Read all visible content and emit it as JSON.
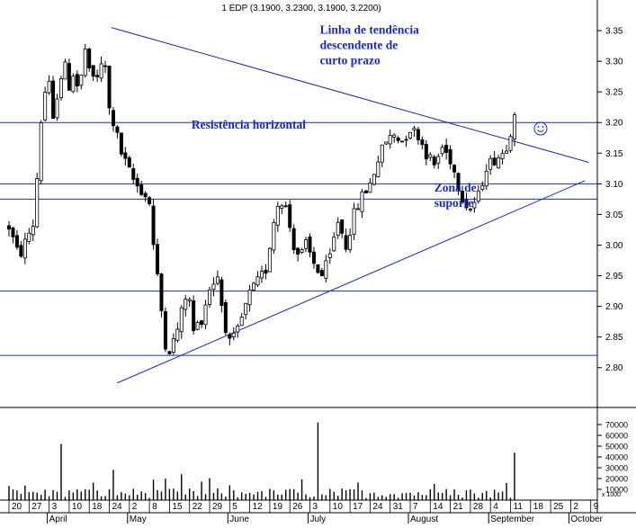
{
  "chart_data": {
    "type": "candlestick",
    "title": "1 EDP (3.1900, 3.2300, 3.1900, 3.2200)",
    "price_axis": {
      "ylim": [
        2.735,
        3.4
      ],
      "ticks": [
        "3.35",
        "3.30",
        "3.25",
        "3.20",
        "3.15",
        "3.10",
        "3.05",
        "3.00",
        "2.95",
        "2.90",
        "2.85",
        "2.80"
      ]
    },
    "volume_axis": {
      "ymax": 80000,
      "ticks": [
        "70000",
        "60000",
        "50000",
        "40000",
        "30000",
        "20000",
        "10000"
      ],
      "unit_label": "x 1000"
    },
    "x_day_labels": [
      "20",
      "27",
      "3",
      "10",
      "18",
      "24",
      "2",
      "8",
      "15",
      "22",
      "29",
      "5",
      "12",
      "19",
      "26",
      "3",
      "10",
      "17",
      "24",
      "31",
      "7",
      "14",
      "21",
      "28",
      "4",
      "11",
      "18",
      "25",
      "2",
      "9"
    ],
    "x_month_labels": [
      {
        "at": 2,
        "label": "April"
      },
      {
        "at": 6,
        "label": "May"
      },
      {
        "at": 11,
        "label": "June"
      },
      {
        "at": 15,
        "label": "July"
      },
      {
        "at": 20,
        "label": "August"
      },
      {
        "at": 24,
        "label": "September"
      },
      {
        "at": 28,
        "label": "October"
      }
    ],
    "horizontal_lines": [
      3.2,
      3.1,
      3.075,
      2.925,
      2.82
    ],
    "trendlines": [
      {
        "from": [
          5.1,
          3.355
        ],
        "to": [
          28.9,
          3.135
        ]
      },
      {
        "from": [
          5.4,
          2.775
        ],
        "to": [
          28.7,
          3.105
        ]
      }
    ],
    "annotations": [
      {
        "lines": [
          "Linha de tendência",
          "descendente de",
          "curto prazo"
        ],
        "x": 15.5,
        "y": 3.345
      },
      {
        "lines": [
          "Resistência horizontal"
        ],
        "x": 9.1,
        "y": 3.19
      },
      {
        "lines": [
          "Zona de",
          "suporte"
        ],
        "x": 21.2,
        "y": 3.087
      }
    ],
    "smiley_at": [
      26.5,
      3.19
    ],
    "anchors": [
      [
        0,
        3.03
      ],
      [
        0.5,
        2.98
      ],
      [
        1,
        3.02
      ],
      [
        1.3,
        3.04
      ],
      [
        1.5,
        3.18
      ],
      [
        1.8,
        3.25
      ],
      [
        2.0,
        3.26
      ],
      [
        2.2,
        3.2
      ],
      [
        2.5,
        3.27
      ],
      [
        2.8,
        3.29
      ],
      [
        3.0,
        3.26
      ],
      [
        3.2,
        3.28
      ],
      [
        3.5,
        3.25
      ],
      [
        3.8,
        3.32
      ],
      [
        4.0,
        3.28
      ],
      [
        4.3,
        3.27
      ],
      [
        4.6,
        3.29
      ],
      [
        4.8,
        3.29
      ],
      [
        5.0,
        3.22
      ],
      [
        5.3,
        3.19
      ],
      [
        5.6,
        3.15
      ],
      [
        6.0,
        3.12
      ],
      [
        6.3,
        3.1
      ],
      [
        6.6,
        3.09
      ],
      [
        7.0,
        3.07
      ],
      [
        7.2,
        3.0
      ],
      [
        7.5,
        2.92
      ],
      [
        7.8,
        2.84
      ],
      [
        8.0,
        2.83
      ],
      [
        8.3,
        2.85
      ],
      [
        8.6,
        2.89
      ],
      [
        8.9,
        2.93
      ],
      [
        9.2,
        2.86
      ],
      [
        9.6,
        2.88
      ],
      [
        10.0,
        2.93
      ],
      [
        10.4,
        2.95
      ],
      [
        10.7,
        2.88
      ],
      [
        11.0,
        2.84
      ],
      [
        11.3,
        2.85
      ],
      [
        11.6,
        2.88
      ],
      [
        12.0,
        2.92
      ],
      [
        12.4,
        2.94
      ],
      [
        12.8,
        2.96
      ],
      [
        13.2,
        3.04
      ],
      [
        13.5,
        3.08
      ],
      [
        13.8,
        3.06
      ],
      [
        14.2,
        3.0
      ],
      [
        14.5,
        2.98
      ],
      [
        14.8,
        3.0
      ],
      [
        15.2,
        2.97
      ],
      [
        15.6,
        2.95
      ],
      [
        16.0,
        2.98
      ],
      [
        16.4,
        3.04
      ],
      [
        16.8,
        3.0
      ],
      [
        17.2,
        3.05
      ],
      [
        17.6,
        3.08
      ],
      [
        18.0,
        3.1
      ],
      [
        18.4,
        3.14
      ],
      [
        18.8,
        3.17
      ],
      [
        19.2,
        3.18
      ],
      [
        19.6,
        3.17
      ],
      [
        20.0,
        3.19
      ],
      [
        20.4,
        3.18
      ],
      [
        20.8,
        3.15
      ],
      [
        21.2,
        3.13
      ],
      [
        21.6,
        3.16
      ],
      [
        22.0,
        3.14
      ],
      [
        22.4,
        3.1
      ],
      [
        22.7,
        3.07
      ],
      [
        23.0,
        3.06
      ],
      [
        23.4,
        3.08
      ],
      [
        23.8,
        3.13
      ],
      [
        24.2,
        3.14
      ],
      [
        24.6,
        3.15
      ],
      [
        24.9,
        3.17
      ],
      [
        25.2,
        3.22
      ]
    ],
    "volume_spikes": [
      [
        2.6,
        52000
      ],
      [
        5.2,
        28000
      ],
      [
        8.6,
        24000
      ],
      [
        15.3,
        72000
      ],
      [
        25.1,
        44000
      ]
    ]
  }
}
